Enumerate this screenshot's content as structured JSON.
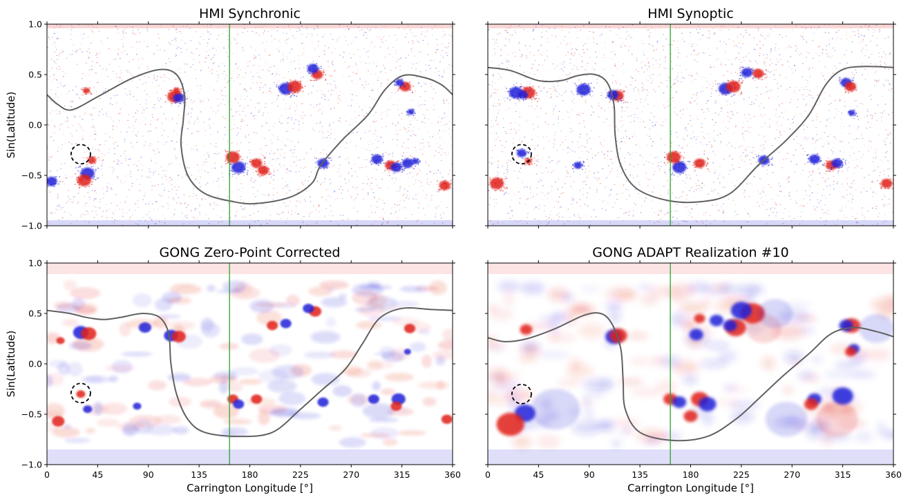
{
  "figure": {
    "type": "heatmap",
    "colors": {
      "positive": "#e0201a",
      "negative": "#1f1fd8",
      "neutral_line": "#606060",
      "marker_line": "#2ca02c",
      "circle": "#000000"
    },
    "x_ticks": [
      "0",
      "45",
      "90",
      "135",
      "180",
      "225",
      "270",
      "315",
      "360"
    ],
    "y_ticks": [
      "1.0",
      "0.5",
      "0.0",
      "−0.5",
      "−1.0"
    ],
    "xlabel": "Carrington Longitude [°]",
    "ylabel": "Sin(Latitude)"
  },
  "chart_data": [
    {
      "type": "heatmap",
      "title": "HMI Synchronic",
      "xlim": [
        0,
        360
      ],
      "ylim": [
        -1,
        1
      ],
      "xlabel": "",
      "ylabel": "Sin(Latitude)",
      "marker_line_x": 162,
      "circle": {
        "x": 30,
        "y": -0.29
      },
      "texture": "speckle",
      "neutral_line": [
        [
          0,
          0.3
        ],
        [
          10,
          0.2
        ],
        [
          22,
          0.15
        ],
        [
          45,
          0.28
        ],
        [
          75,
          0.46
        ],
        [
          100,
          0.55
        ],
        [
          115,
          0.5
        ],
        [
          122,
          0.3
        ],
        [
          121,
          0.05
        ],
        [
          119,
          -0.2
        ],
        [
          125,
          -0.5
        ],
        [
          140,
          -0.68
        ],
        [
          165,
          -0.76
        ],
        [
          185,
          -0.78
        ],
        [
          215,
          -0.72
        ],
        [
          235,
          -0.58
        ],
        [
          243,
          -0.4
        ],
        [
          262,
          -0.15
        ],
        [
          285,
          0.1
        ],
        [
          300,
          0.35
        ],
        [
          316,
          0.49
        ],
        [
          335,
          0.47
        ],
        [
          350,
          0.4
        ],
        [
          360,
          0.3
        ]
      ],
      "active_regions": [
        {
          "x": 113,
          "y": 0.28,
          "r": 2,
          "p": 1
        },
        {
          "x": 117,
          "y": 0.27,
          "r": 1.6,
          "p": -1
        },
        {
          "x": 115,
          "y": 0.34,
          "r": 1,
          "p": 1
        },
        {
          "x": 170,
          "y": -0.42,
          "r": 2,
          "p": -1
        },
        {
          "x": 165,
          "y": -0.32,
          "r": 2,
          "p": 1
        },
        {
          "x": 186,
          "y": -0.38,
          "r": 1.6,
          "p": 1
        },
        {
          "x": 192,
          "y": -0.45,
          "r": 1.6,
          "p": 1
        },
        {
          "x": 212,
          "y": 0.36,
          "r": 2,
          "p": -1
        },
        {
          "x": 220,
          "y": 0.38,
          "r": 2,
          "p": 1
        },
        {
          "x": 240,
          "y": 0.5,
          "r": 1.6,
          "p": 1
        },
        {
          "x": 236,
          "y": 0.56,
          "r": 1.6,
          "p": -1
        },
        {
          "x": 245,
          "y": -0.38,
          "r": 1.6,
          "p": -1
        },
        {
          "x": 293,
          "y": -0.34,
          "r": 1.6,
          "p": -1
        },
        {
          "x": 305,
          "y": -0.4,
          "r": 1.6,
          "p": 1
        },
        {
          "x": 310,
          "y": -0.42,
          "r": 1.6,
          "p": -1
        },
        {
          "x": 320,
          "y": -0.38,
          "r": 1.6,
          "p": -1
        },
        {
          "x": 323,
          "y": 0.13,
          "r": 1,
          "p": -1
        },
        {
          "x": 318,
          "y": 0.38,
          "r": 1.6,
          "p": 1
        },
        {
          "x": 313,
          "y": 0.42,
          "r": 1.2,
          "p": -1
        },
        {
          "x": 36,
          "y": -0.48,
          "r": 2,
          "p": -1
        },
        {
          "x": 33,
          "y": -0.55,
          "r": 2,
          "p": 1
        },
        {
          "x": 35,
          "y": 0.34,
          "r": 1,
          "p": 1
        },
        {
          "x": 327,
          "y": -0.36,
          "r": 1,
          "p": -1
        },
        {
          "x": 353,
          "y": -0.6,
          "r": 1.6,
          "p": 1
        },
        {
          "x": 4,
          "y": -0.56,
          "r": 1.6,
          "p": -1
        },
        {
          "x": 40,
          "y": -0.35,
          "r": 1.2,
          "p": 1
        }
      ]
    },
    {
      "type": "heatmap",
      "title": "HMI Synoptic",
      "xlim": [
        0,
        360
      ],
      "ylim": [
        -1,
        1
      ],
      "xlabel": "",
      "ylabel": "",
      "marker_line_x": 162,
      "circle": {
        "x": 30,
        "y": -0.29
      },
      "texture": "speckle",
      "neutral_line": [
        [
          0,
          0.57
        ],
        [
          20,
          0.54
        ],
        [
          45,
          0.44
        ],
        [
          65,
          0.44
        ],
        [
          80,
          0.49
        ],
        [
          95,
          0.5
        ],
        [
          106,
          0.42
        ],
        [
          112,
          0.2
        ],
        [
          113,
          -0.1
        ],
        [
          118,
          -0.4
        ],
        [
          132,
          -0.63
        ],
        [
          160,
          -0.75
        ],
        [
          190,
          -0.76
        ],
        [
          215,
          -0.68
        ],
        [
          240,
          -0.4
        ],
        [
          265,
          -0.15
        ],
        [
          285,
          0.1
        ],
        [
          300,
          0.4
        ],
        [
          315,
          0.55
        ],
        [
          335,
          0.58
        ],
        [
          360,
          0.57
        ]
      ],
      "active_regions": [
        {
          "x": 25,
          "y": 0.32,
          "r": 2,
          "p": -1
        },
        {
          "x": 36,
          "y": 0.32,
          "r": 2,
          "p": 1
        },
        {
          "x": 31,
          "y": 0.3,
          "r": 1.4,
          "p": -1
        },
        {
          "x": 85,
          "y": 0.35,
          "r": 2,
          "p": -1
        },
        {
          "x": 115,
          "y": 0.29,
          "r": 1.8,
          "p": 1
        },
        {
          "x": 111,
          "y": 0.3,
          "r": 1.6,
          "p": -1
        },
        {
          "x": 30,
          "y": -0.28,
          "r": 1.4,
          "p": -1
        },
        {
          "x": 36,
          "y": -0.36,
          "r": 1,
          "p": 1
        },
        {
          "x": 170,
          "y": -0.42,
          "r": 2,
          "p": -1
        },
        {
          "x": 165,
          "y": -0.32,
          "r": 2,
          "p": 1
        },
        {
          "x": 188,
          "y": -0.38,
          "r": 1.6,
          "p": 1
        },
        {
          "x": 211,
          "y": 0.36,
          "r": 2,
          "p": -1
        },
        {
          "x": 218,
          "y": 0.38,
          "r": 2,
          "p": 1
        },
        {
          "x": 240,
          "y": 0.51,
          "r": 1.6,
          "p": 1
        },
        {
          "x": 230,
          "y": 0.52,
          "r": 1.6,
          "p": -1
        },
        {
          "x": 245,
          "y": -0.35,
          "r": 1.6,
          "p": -1
        },
        {
          "x": 290,
          "y": -0.34,
          "r": 1.6,
          "p": -1
        },
        {
          "x": 305,
          "y": -0.4,
          "r": 1.6,
          "p": 1
        },
        {
          "x": 310,
          "y": -0.38,
          "r": 1.6,
          "p": -1
        },
        {
          "x": 318,
          "y": 0.42,
          "r": 1.6,
          "p": -1
        },
        {
          "x": 322,
          "y": 0.38,
          "r": 1.6,
          "p": 1
        },
        {
          "x": 323,
          "y": 0.12,
          "r": 1,
          "p": -1
        },
        {
          "x": 8,
          "y": -0.58,
          "r": 2,
          "p": 1
        },
        {
          "x": 354,
          "y": -0.58,
          "r": 1.6,
          "p": 1
        },
        {
          "x": 80,
          "y": -0.4,
          "r": 1.2,
          "p": -1
        }
      ]
    },
    {
      "type": "heatmap",
      "title": "GONG Zero-Point Corrected",
      "xlim": [
        0,
        360
      ],
      "ylim": [
        -1,
        1
      ],
      "xlabel": "Carrington Longitude [°]",
      "ylabel": "Sin(Latitude)",
      "marker_line_x": 162,
      "circle": {
        "x": 30,
        "y": -0.29
      },
      "texture": "blur",
      "neutral_line": [
        [
          0,
          0.53
        ],
        [
          20,
          0.5
        ],
        [
          35,
          0.46
        ],
        [
          50,
          0.44
        ],
        [
          65,
          0.46
        ],
        [
          85,
          0.5
        ],
        [
          100,
          0.46
        ],
        [
          108,
          0.3
        ],
        [
          110,
          0.0
        ],
        [
          115,
          -0.3
        ],
        [
          125,
          -0.55
        ],
        [
          140,
          -0.68
        ],
        [
          170,
          -0.72
        ],
        [
          200,
          -0.68
        ],
        [
          225,
          -0.45
        ],
        [
          245,
          -0.25
        ],
        [
          265,
          -0.05
        ],
        [
          280,
          0.2
        ],
        [
          295,
          0.45
        ],
        [
          315,
          0.55
        ],
        [
          340,
          0.54
        ],
        [
          360,
          0.53
        ]
      ],
      "active_regions": [
        {
          "x": 30,
          "y": 0.31,
          "r": 2.2,
          "p": -1
        },
        {
          "x": 37,
          "y": 0.3,
          "r": 2.2,
          "p": 1
        },
        {
          "x": 87,
          "y": 0.36,
          "r": 1.8,
          "p": -1
        },
        {
          "x": 110,
          "y": 0.28,
          "r": 2,
          "p": -1
        },
        {
          "x": 117,
          "y": 0.27,
          "r": 2,
          "p": 1
        },
        {
          "x": 165,
          "y": -0.35,
          "r": 1.6,
          "p": 1
        },
        {
          "x": 170,
          "y": -0.4,
          "r": 1.6,
          "p": -1
        },
        {
          "x": 186,
          "y": -0.35,
          "r": 1.6,
          "p": 1
        },
        {
          "x": 200,
          "y": 0.38,
          "r": 1.6,
          "p": 1
        },
        {
          "x": 212,
          "y": 0.4,
          "r": 1.6,
          "p": -1
        },
        {
          "x": 238,
          "y": 0.52,
          "r": 1.8,
          "p": 1
        },
        {
          "x": 232,
          "y": 0.55,
          "r": 1.6,
          "p": -1
        },
        {
          "x": 245,
          "y": -0.38,
          "r": 1.6,
          "p": -1
        },
        {
          "x": 290,
          "y": -0.35,
          "r": 1.6,
          "p": -1
        },
        {
          "x": 312,
          "y": -0.35,
          "r": 2,
          "p": -1
        },
        {
          "x": 310,
          "y": -0.42,
          "r": 1.6,
          "p": 1
        },
        {
          "x": 322,
          "y": 0.35,
          "r": 1.6,
          "p": 1
        },
        {
          "x": 320,
          "y": 0.12,
          "r": 1,
          "p": -1
        },
        {
          "x": 30,
          "y": -0.3,
          "r": 1.3,
          "p": 1
        },
        {
          "x": 36,
          "y": -0.45,
          "r": 1.3,
          "p": -1
        },
        {
          "x": 10,
          "y": -0.57,
          "r": 1.8,
          "p": 1
        },
        {
          "x": 80,
          "y": -0.42,
          "r": 1.2,
          "p": -1
        },
        {
          "x": 355,
          "y": -0.55,
          "r": 1.6,
          "p": 1
        },
        {
          "x": 12,
          "y": 0.23,
          "r": 1.2,
          "p": 1
        }
      ]
    },
    {
      "type": "heatmap",
      "title": "GONG ADAPT Realization #10",
      "xlim": [
        0,
        360
      ],
      "ylim": [
        -1,
        1
      ],
      "xlabel": "Carrington Longitude [°]",
      "ylabel": "",
      "marker_line_x": 162,
      "circle": {
        "x": 30,
        "y": -0.3
      },
      "texture": "smooth",
      "neutral_line": [
        [
          0,
          0.26
        ],
        [
          15,
          0.22
        ],
        [
          35,
          0.25
        ],
        [
          60,
          0.35
        ],
        [
          85,
          0.48
        ],
        [
          100,
          0.5
        ],
        [
          110,
          0.4
        ],
        [
          118,
          0.15
        ],
        [
          120,
          -0.15
        ],
        [
          122,
          -0.45
        ],
        [
          135,
          -0.68
        ],
        [
          165,
          -0.76
        ],
        [
          195,
          -0.72
        ],
        [
          220,
          -0.55
        ],
        [
          240,
          -0.35
        ],
        [
          262,
          -0.12
        ],
        [
          285,
          0.1
        ],
        [
          305,
          0.3
        ],
        [
          325,
          0.36
        ],
        [
          345,
          0.32
        ],
        [
          360,
          0.27
        ]
      ],
      "active_regions": [
        {
          "x": 112,
          "y": 0.27,
          "r": 2.5,
          "p": -1
        },
        {
          "x": 116,
          "y": 0.28,
          "r": 2.5,
          "p": 1
        },
        {
          "x": 33,
          "y": -0.49,
          "r": 3,
          "p": -1
        },
        {
          "x": 20,
          "y": -0.6,
          "r": 4,
          "p": 1
        },
        {
          "x": 34,
          "y": 0.34,
          "r": 1.8,
          "p": 1
        },
        {
          "x": 162,
          "y": -0.35,
          "r": 2,
          "p": 1
        },
        {
          "x": 170,
          "y": -0.38,
          "r": 2,
          "p": -1
        },
        {
          "x": 188,
          "y": -0.35,
          "r": 2.5,
          "p": 1
        },
        {
          "x": 195,
          "y": -0.4,
          "r": 2.5,
          "p": -1
        },
        {
          "x": 220,
          "y": 0.36,
          "r": 3,
          "p": 1
        },
        {
          "x": 215,
          "y": 0.38,
          "r": 2,
          "p": -1
        },
        {
          "x": 235,
          "y": 0.5,
          "r": 3.5,
          "p": 1
        },
        {
          "x": 225,
          "y": 0.53,
          "r": 3,
          "p": -1
        },
        {
          "x": 203,
          "y": 0.43,
          "r": 2,
          "p": -1
        },
        {
          "x": 188,
          "y": 0.45,
          "r": 1.6,
          "p": 1
        },
        {
          "x": 290,
          "y": -0.35,
          "r": 2,
          "p": -1
        },
        {
          "x": 315,
          "y": -0.32,
          "r": 3,
          "p": -1
        },
        {
          "x": 287,
          "y": -0.4,
          "r": 2,
          "p": 1
        },
        {
          "x": 323,
          "y": 0.38,
          "r": 2.5,
          "p": 1
        },
        {
          "x": 318,
          "y": 0.38,
          "r": 2,
          "p": -1
        },
        {
          "x": 325,
          "y": 0.15,
          "r": 1.6,
          "p": -1
        },
        {
          "x": 322,
          "y": 0.12,
          "r": 1.6,
          "p": 1
        },
        {
          "x": 185,
          "y": 0.29,
          "r": 2,
          "p": -1
        },
        {
          "x": 180,
          "y": -0.52,
          "r": 2,
          "p": 1
        },
        {
          "x": 265,
          "y": -0.55,
          "r": 6,
          "p": -1
        },
        {
          "x": 310,
          "y": -0.55,
          "r": 6,
          "p": 1
        },
        {
          "x": 245,
          "y": 0.35,
          "r": 5,
          "p": 1
        },
        {
          "x": 255,
          "y": 0.5,
          "r": 5,
          "p": -1
        },
        {
          "x": 60,
          "y": -0.45,
          "r": 7,
          "p": -1
        },
        {
          "x": 345,
          "y": 0.35,
          "r": 5,
          "p": -1
        }
      ]
    }
  ]
}
